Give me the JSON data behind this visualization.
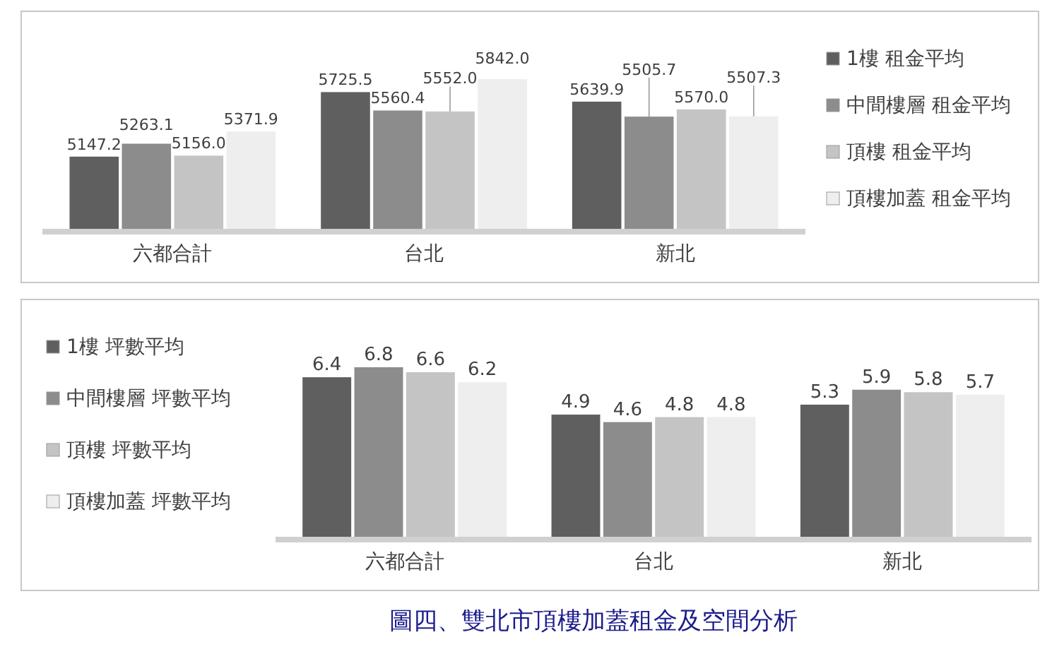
{
  "chart_data": [
    {
      "type": "bar",
      "categories": [
        "六都合計",
        "台北",
        "新北"
      ],
      "ylim": [
        4500,
        5842.0
      ],
      "legend": "right",
      "series": [
        {
          "name": "1樓 租金平均",
          "color": "#5f5f5f",
          "values": [
            5147.2,
            5725.5,
            5639.9
          ],
          "value_labels": [
            "5147.2",
            "5725.5",
            "5639.9"
          ]
        },
        {
          "name": "中間樓層 租金平均",
          "color": "#8c8c8c",
          "values": [
            5263.1,
            5560.4,
            5505.7
          ],
          "value_labels": [
            "5263.1",
            "5560.4",
            "5505.7"
          ]
        },
        {
          "name": "頂樓 租金平均",
          "color": "#c4c4c4",
          "values": [
            5156.0,
            5552.0,
            5570.0
          ],
          "value_labels": [
            "5156.0",
            "5552.0",
            "5570.0"
          ]
        },
        {
          "name": "頂樓加蓋 租金平均",
          "color": "#eeeeee",
          "values": [
            5371.9,
            5842.0,
            5507.3
          ],
          "value_labels": [
            "5371.9",
            "5842.0",
            "5507.3"
          ]
        }
      ]
    },
    {
      "type": "bar",
      "categories": [
        "六都合計",
        "台北",
        "新北"
      ],
      "ylim": [
        0,
        6.8
      ],
      "legend": "left",
      "annotations": [
        "圖四、雙北市頂樓加蓋租金及空間分析"
      ],
      "series": [
        {
          "name": "1樓 坪數平均",
          "color": "#5f5f5f",
          "values": [
            6.4,
            4.9,
            5.3
          ],
          "value_labels": [
            "6.4",
            "4.9",
            "5.3"
          ]
        },
        {
          "name": "中間樓層 坪數平均",
          "color": "#8c8c8c",
          "values": [
            6.8,
            4.6,
            5.9
          ],
          "value_labels": [
            "6.8",
            "4.6",
            "5.9"
          ]
        },
        {
          "name": "頂樓 坪數平均",
          "color": "#c4c4c4",
          "values": [
            6.6,
            4.8,
            5.8
          ],
          "value_labels": [
            "6.6",
            "4.8",
            "5.8"
          ]
        },
        {
          "name": "頂樓加蓋 坪數平均",
          "color": "#eeeeee",
          "values": [
            6.2,
            4.8,
            5.7
          ],
          "value_labels": [
            "6.2",
            "4.8",
            "5.7"
          ]
        }
      ]
    }
  ]
}
